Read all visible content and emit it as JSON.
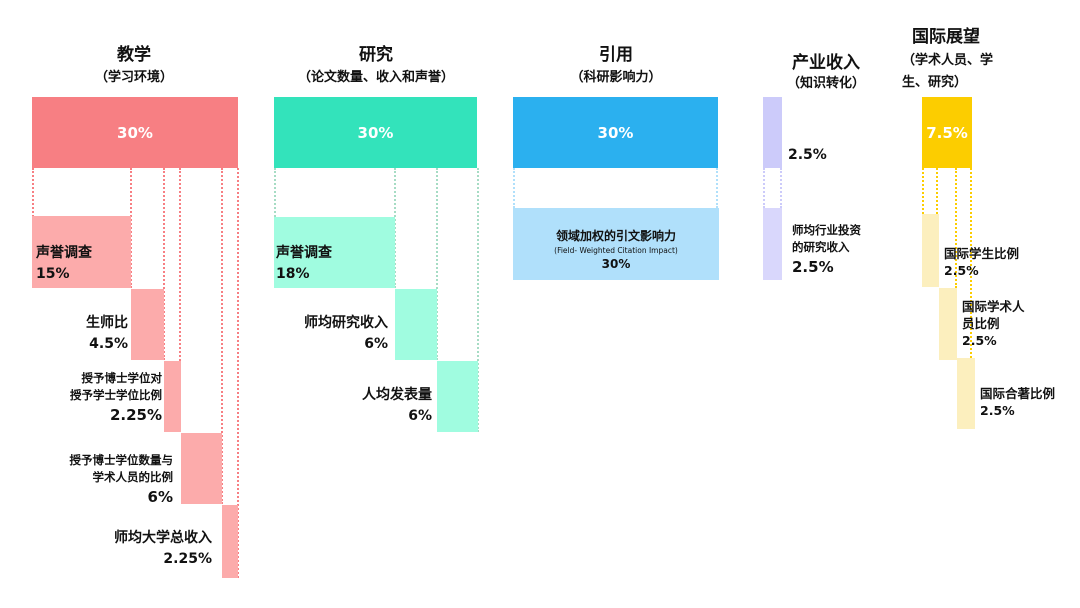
{
  "colors": {
    "teaching": "#f77f83",
    "teaching_sub": "#fcabab",
    "research": "#33e3bb",
    "research_sub": "#a0fce0",
    "citations": "#2bb0ef",
    "citations_sub": "#b0e0fb",
    "industry": "#cccbfa",
    "industry_sub": "#d9d7fc",
    "international": "#fccd00",
    "international_sub": "#fcefbe"
  },
  "teaching": {
    "title": "教学",
    "subtitle": "（学习环境）",
    "weight": "30%",
    "items": [
      {
        "name": "声誉调查",
        "weight": "15%"
      },
      {
        "name": "生师比",
        "weight": "4.5%"
      },
      {
        "name_l1": "授予博士学位对",
        "name_l2": "授予学士学位比例",
        "weight": "2.25%"
      },
      {
        "name_l1": "授予博士学位数量与",
        "name_l2": "学术人员的比例",
        "weight": "6%"
      },
      {
        "name": "师均大学总收入",
        "weight": "2.25%"
      }
    ]
  },
  "research": {
    "title": "研究",
    "subtitle": "（论文数量、收入和声誉）",
    "weight": "30%",
    "items": [
      {
        "name": "声誉调查",
        "weight": "18%"
      },
      {
        "name": "师均研究收入",
        "weight": "6%"
      },
      {
        "name": "人均发表量",
        "weight": "6%"
      }
    ]
  },
  "citations": {
    "title": "引用",
    "subtitle": "（科研影响力）",
    "weight": "30%",
    "items": [
      {
        "name": "领域加权的引文影响力",
        "name_en": "(Field- Weighted Citation Impact)",
        "weight": "30%"
      }
    ]
  },
  "industry": {
    "title": "产业收入",
    "subtitle": "（知识转化）",
    "weight": "2.5%",
    "items": [
      {
        "name_l1": "师均行业投资",
        "name_l2": "的研究收入",
        "weight": "2.5%"
      }
    ]
  },
  "international": {
    "title": "国际展望",
    "subtitle_l1": "（学术人员、学",
    "subtitle_l2": "生、研究）",
    "weight": "7.5%",
    "items": [
      {
        "name": "国际学生比例",
        "weight": "2.5%"
      },
      {
        "name_l1": "国际学术人",
        "name_l2": "员比例",
        "weight": "2.5%"
      },
      {
        "name": "国际合著比例",
        "weight": "2.5%"
      }
    ]
  }
}
